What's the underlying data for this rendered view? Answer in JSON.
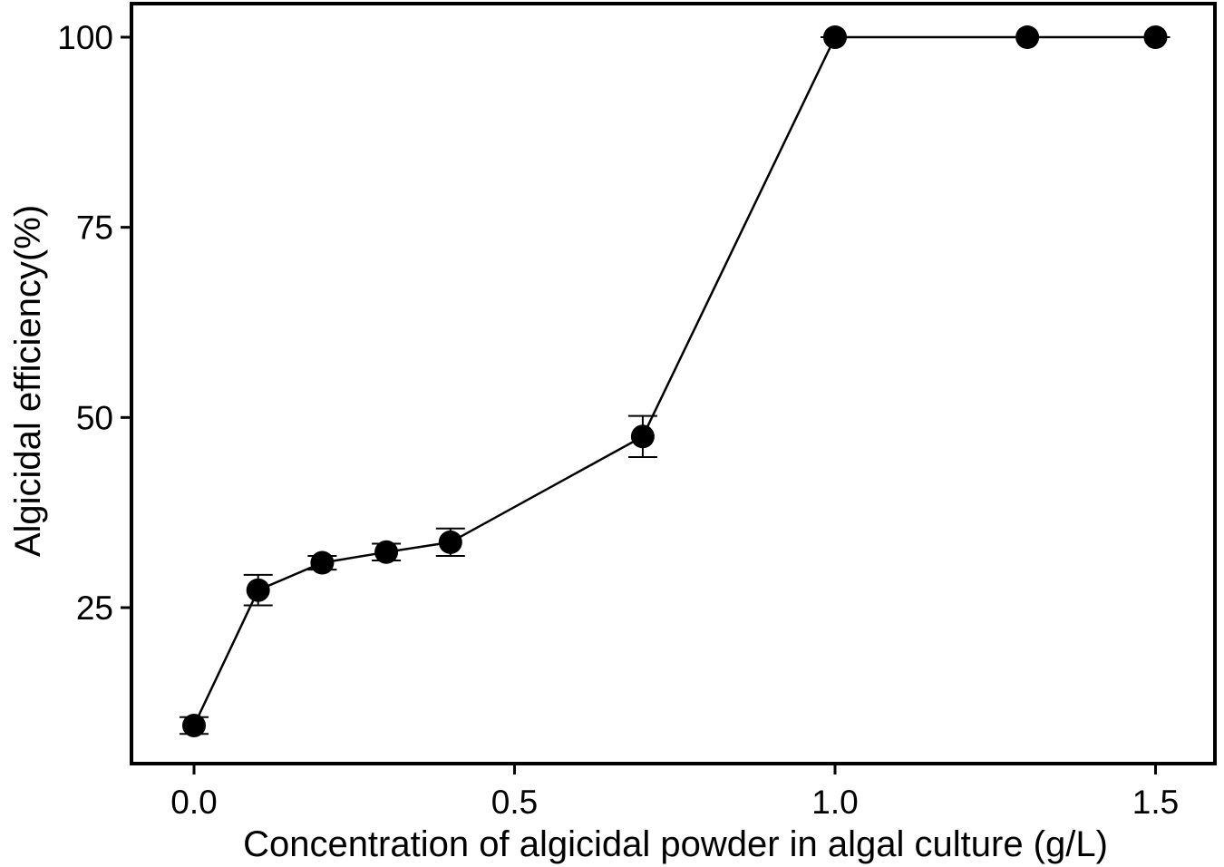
{
  "chart_data": {
    "type": "line",
    "title": "",
    "xlabel": "Concentration of algicidal powder in algal culture (g/L)",
    "ylabel": "Algicidal efficiency(%)",
    "xlim": [
      -0.1,
      1.6
    ],
    "ylim": [
      0,
      100
    ],
    "x_ticks": [
      {
        "value": 0.0,
        "label": "0.0"
      },
      {
        "value": 0.5,
        "label": "0.5"
      },
      {
        "value": 1.0,
        "label": "1.0"
      },
      {
        "value": 1.5,
        "label": "1.5"
      }
    ],
    "y_ticks": [
      {
        "value": 25,
        "label": "25"
      },
      {
        "value": 50,
        "label": "50"
      },
      {
        "value": 75,
        "label": "75"
      },
      {
        "value": 100,
        "label": "100"
      }
    ],
    "grid": false,
    "legend": "none",
    "series": [
      {
        "color": "#000000",
        "x": [
          0.0,
          0.1,
          0.2,
          0.3,
          0.4,
          0.7,
          1.0,
          1.3,
          1.5
        ],
        "y": [
          9.5,
          27.3,
          30.9,
          32.3,
          33.6,
          47.5,
          100,
          100,
          100
        ],
        "error": [
          1.1,
          2.0,
          0.9,
          1.1,
          1.8,
          2.7,
          0,
          0,
          0
        ]
      }
    ]
  }
}
